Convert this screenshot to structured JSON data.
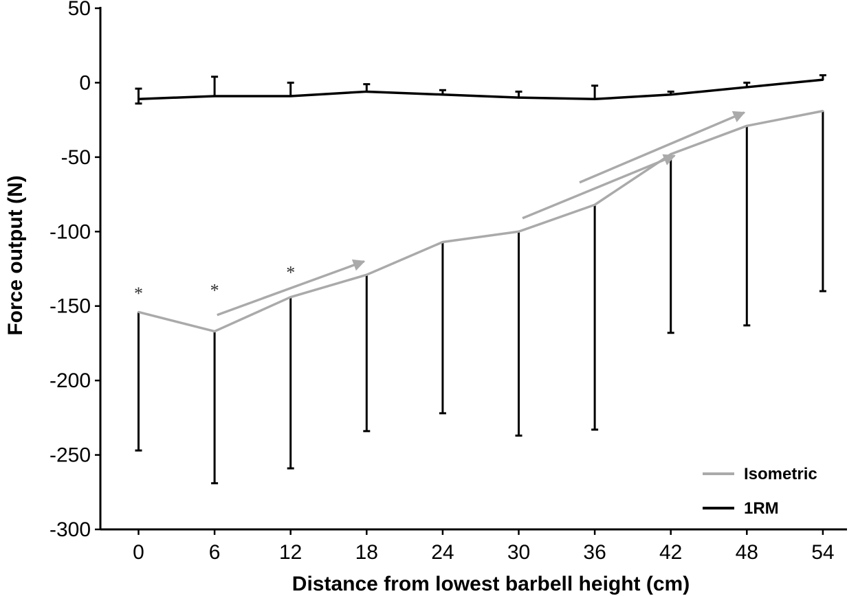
{
  "chart_data": {
    "type": "line",
    "title": "",
    "xlabel": "Distance from lowest barbell height (cm)",
    "ylabel": "Force output (N)",
    "x": [
      0,
      6,
      12,
      18,
      24,
      30,
      36,
      42,
      48,
      54
    ],
    "x_tick_labels": [
      "0",
      "6",
      "12",
      "18",
      "24",
      "30",
      "36",
      "42",
      "48",
      "54"
    ],
    "ylim": [
      -300,
      50
    ],
    "y_ticks": [
      50,
      0,
      -50,
      -100,
      -150,
      -200,
      -250,
      -300
    ],
    "y_tick_labels": [
      "50",
      "0",
      "-50",
      "-100",
      "-150",
      "-200",
      "-250",
      "-300"
    ],
    "series": [
      {
        "name": "Isometric",
        "color": "#aaaaaa",
        "values": [
          -154,
          -167,
          -144,
          -129,
          -107,
          -100,
          -82,
          -48,
          -29,
          -19
        ],
        "error_low": [
          -247,
          -269,
          -259,
          -234,
          -222,
          -237,
          -233,
          -168,
          -163,
          -140
        ],
        "error_color": "#000000"
      },
      {
        "name": "1RM",
        "color": "#000000",
        "values": [
          -11,
          -9,
          -9,
          -6,
          -8,
          -10,
          -11,
          -8,
          -3,
          2
        ],
        "error_high": [
          -4,
          4,
          0,
          -1,
          -5,
          -6,
          -2,
          -6,
          0,
          5
        ],
        "error_low": [
          -14,
          null,
          null,
          null,
          null,
          null,
          null,
          null,
          null,
          null
        ]
      }
    ],
    "legend": {
      "position": "bottom-right",
      "entries": [
        "Isometric",
        "1RM"
      ]
    },
    "annotations": {
      "asterisks": [
        {
          "x": 0,
          "y": -140,
          "text": "*"
        },
        {
          "x": 6,
          "y": -138,
          "text": "*"
        },
        {
          "x": 12,
          "y": -126,
          "text": "*"
        }
      ],
      "arrows": [
        {
          "x1": 6.2,
          "y1": -156,
          "x2": 17.8,
          "y2": -120
        },
        {
          "x1": 30.3,
          "y1": -91,
          "x2": 42.3,
          "y2": -49
        },
        {
          "x1": 34.8,
          "y1": -67,
          "x2": 47.8,
          "y2": -20
        }
      ],
      "arrow_color": "#aaaaaa"
    }
  }
}
